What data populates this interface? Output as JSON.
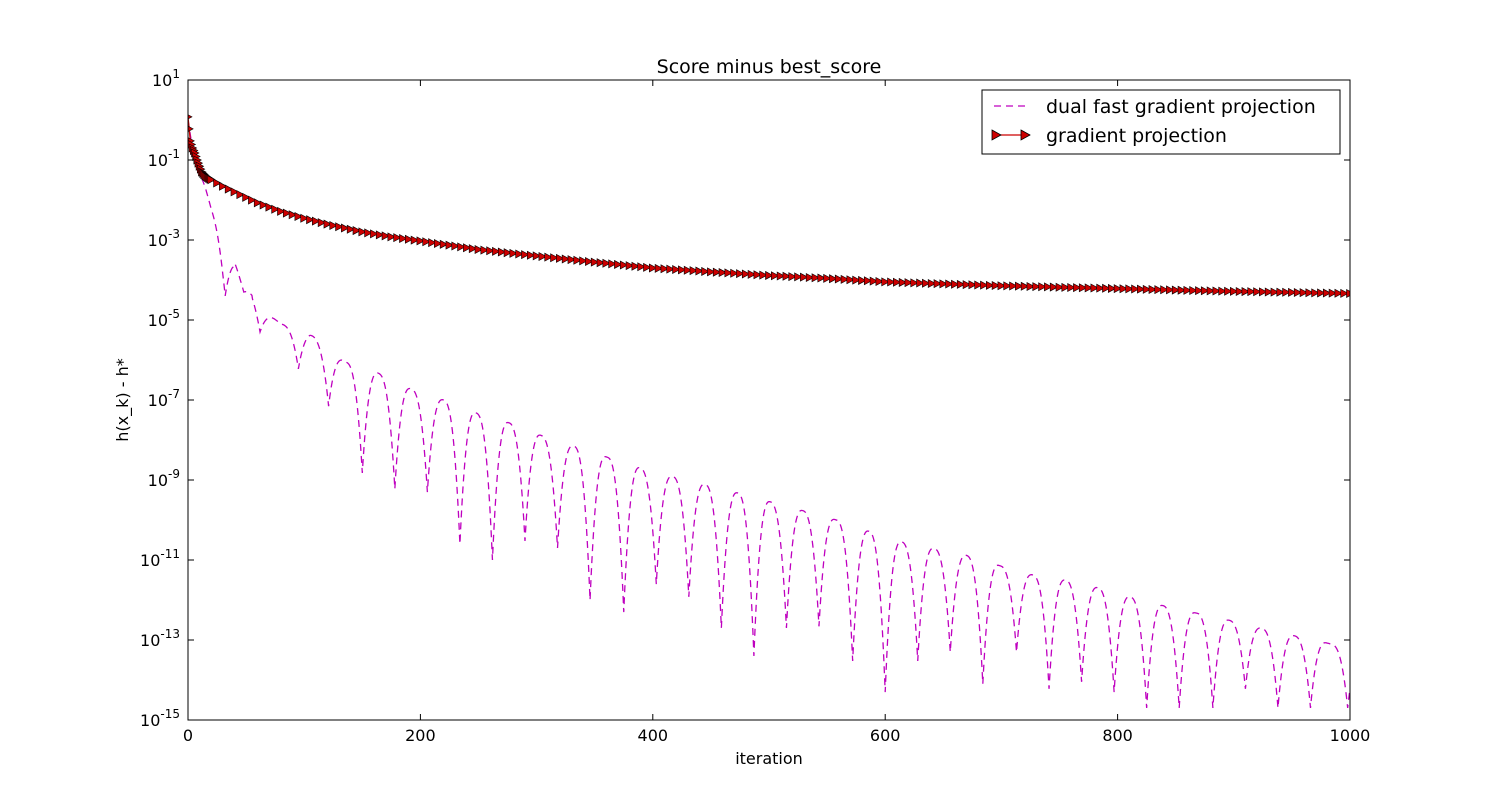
{
  "chart_data": {
    "type": "line",
    "title": "Score minus best_score",
    "xlabel": "iteration",
    "ylabel": "h(x_k) - h*",
    "xlim": [
      0,
      1000
    ],
    "ylim_log10": [
      -15,
      1
    ],
    "yscale": "log",
    "grid": false,
    "legend_position": "top-right",
    "x_ticks": [
      0,
      200,
      400,
      600,
      800,
      1000
    ],
    "y_ticks": [
      {
        "base": "10",
        "exp": "1"
      },
      {
        "base": "10",
        "exp": "-1"
      },
      {
        "base": "10",
        "exp": "-3"
      },
      {
        "base": "10",
        "exp": "-5"
      },
      {
        "base": "10",
        "exp": "-7"
      },
      {
        "base": "10",
        "exp": "-9"
      },
      {
        "base": "10",
        "exp": "-11"
      },
      {
        "base": "10",
        "exp": "-13"
      },
      {
        "base": "10",
        "exp": "-15"
      }
    ],
    "series": [
      {
        "name": "dual fast gradient projection",
        "color": "#bf00bf",
        "style": "dashed",
        "envelope": {
          "x": [
            0,
            5,
            10,
            15,
            20,
            25,
            30,
            38,
            45,
            53,
            62,
            80,
            105,
            135,
            163,
            190,
            220,
            250,
            280,
            310,
            340,
            370,
            400,
            430,
            460,
            490,
            520,
            550,
            580,
            610,
            640,
            670,
            700,
            730,
            760,
            790,
            820,
            850,
            880,
            910,
            940,
            970,
            1000
          ],
          "y": [
            1.0,
            0.12,
            0.05,
            0.02,
            0.006,
            0.0025,
            0.001,
            0.0004,
            0.00015,
            6e-05,
            2e-05,
            8e-06,
            4.5e-06,
            9e-07,
            4.8e-07,
            2e-07,
            1e-07,
            4.5e-08,
            2.5e-08,
            1.1e-08,
            6e-09,
            3e-09,
            1.6e-09,
            1e-09,
            6e-10,
            3.5e-10,
            2e-10,
            1.2e-10,
            6e-11,
            3e-11,
            2e-11,
            1.3e-11,
            7e-12,
            4e-12,
            3e-12,
            1.8e-12,
            1e-12,
            6e-13,
            4e-13,
            2.5e-13,
            1.5e-13,
            1e-13,
            6e-14
          ]
        },
        "dips": [
          {
            "x": 32,
            "y": 4e-05
          },
          {
            "x": 48,
            "y": 5e-05
          },
          {
            "x": 62,
            "y": 5e-06
          },
          {
            "x": 95,
            "y": 6e-07
          },
          {
            "x": 121,
            "y": 7e-08
          },
          {
            "x": 150,
            "y": 1.5e-09
          },
          {
            "x": 178,
            "y": 6e-10
          },
          {
            "x": 206,
            "y": 5e-10
          },
          {
            "x": 234,
            "y": 2.5e-11
          },
          {
            "x": 262,
            "y": 1e-11
          },
          {
            "x": 290,
            "y": 3e-11
          },
          {
            "x": 318,
            "y": 2e-11
          },
          {
            "x": 346,
            "y": 1e-12
          },
          {
            "x": 375,
            "y": 5e-13
          },
          {
            "x": 403,
            "y": 2.5e-12
          },
          {
            "x": 431,
            "y": 1.2e-12
          },
          {
            "x": 459,
            "y": 2e-13
          },
          {
            "x": 487,
            "y": 4e-14
          },
          {
            "x": 515,
            "y": 2e-13
          },
          {
            "x": 543,
            "y": 2.2e-13
          },
          {
            "x": 572,
            "y": 3e-14
          },
          {
            "x": 600,
            "y": 5e-15
          },
          {
            "x": 628,
            "y": 3e-14
          },
          {
            "x": 656,
            "y": 5e-14
          },
          {
            "x": 684,
            "y": 8e-15
          },
          {
            "x": 713,
            "y": 5e-14
          },
          {
            "x": 741,
            "y": 6e-15
          },
          {
            "x": 769,
            "y": 9e-15
          },
          {
            "x": 797,
            "y": 5e-15
          },
          {
            "x": 825,
            "y": 2e-15
          },
          {
            "x": 853,
            "y": 2e-15
          },
          {
            "x": 882,
            "y": 2e-15
          },
          {
            "x": 910,
            "y": 6e-15
          },
          {
            "x": 938,
            "y": 2e-15
          },
          {
            "x": 966,
            "y": 2e-15
          },
          {
            "x": 998,
            "y": 2e-15
          }
        ]
      },
      {
        "name": "gradient projection",
        "color": "#cc0000",
        "marker": "triangle-right",
        "style": "solid",
        "x": [
          0,
          2,
          4,
          6,
          8,
          10,
          12,
          15,
          20,
          30,
          40,
          60,
          80,
          100,
          125,
          150,
          175,
          200,
          250,
          300,
          350,
          400,
          450,
          500,
          550,
          600,
          650,
          700,
          750,
          800,
          850,
          900,
          950,
          1000
        ],
        "y": [
          1.2,
          0.3,
          0.2,
          0.15,
          0.1,
          0.07,
          0.05,
          0.04,
          0.032,
          0.022,
          0.016,
          0.0085,
          0.0052,
          0.0035,
          0.0023,
          0.0016,
          0.0012,
          0.00095,
          0.00058,
          0.0004,
          0.00028,
          0.0002,
          0.00016,
          0.00013,
          0.00011,
          9e-05,
          8e-05,
          7.2e-05,
          6.6e-05,
          6.1e-05,
          5.6e-05,
          5.2e-05,
          4.9e-05,
          4.6e-05
        ],
        "marker_every_iterations": 5
      }
    ]
  }
}
